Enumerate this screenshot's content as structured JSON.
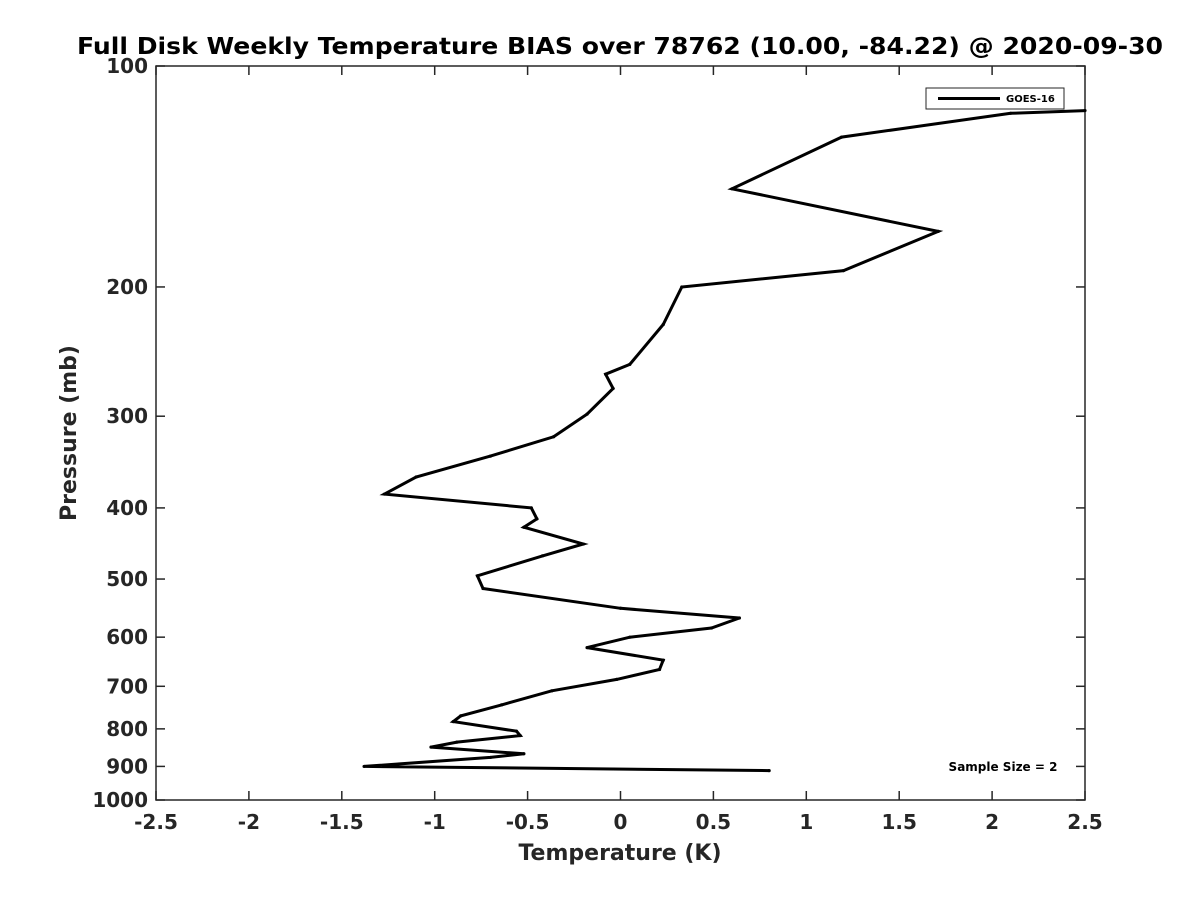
{
  "chart_data": {
    "type": "line",
    "title": "Full Disk Weekly Temperature BIAS over 78762 (10.00, -84.22) @ 2020-09-30",
    "xlabel": "Temperature (K)",
    "ylabel": "Pressure (mb)",
    "xlim": [
      -2.5,
      2.5
    ],
    "ylim": [
      100,
      1000
    ],
    "y_scale": "log",
    "y_reversed": true,
    "x_ticks": [
      "-2.5",
      "-2",
      "-1.5",
      "-1",
      "-0.5",
      "0",
      "0.5",
      "1",
      "1.5",
      "2",
      "2.5"
    ],
    "y_ticks": [
      "100",
      "200",
      "300",
      "400",
      "500",
      "600",
      "700",
      "800",
      "900",
      "1000"
    ],
    "grid": false,
    "legend_position": "top-right",
    "annotation": "Sample Size = 2",
    "series": [
      {
        "name": "GOES-16",
        "color": "#000000",
        "points": [
          {
            "p": 115,
            "t": 2.5
          },
          {
            "p": 116,
            "t": 2.1
          },
          {
            "p": 125,
            "t": 1.19
          },
          {
            "p": 147,
            "t": 0.6
          },
          {
            "p": 168,
            "t": 1.71
          },
          {
            "p": 190,
            "t": 1.2
          },
          {
            "p": 200,
            "t": 0.33
          },
          {
            "p": 225,
            "t": 0.23
          },
          {
            "p": 255,
            "t": 0.05
          },
          {
            "p": 263,
            "t": -0.08
          },
          {
            "p": 275,
            "t": -0.04
          },
          {
            "p": 298,
            "t": -0.18
          },
          {
            "p": 320,
            "t": -0.36
          },
          {
            "p": 340,
            "t": -0.7
          },
          {
            "p": 363,
            "t": -1.1
          },
          {
            "p": 383,
            "t": -1.27
          },
          {
            "p": 400,
            "t": -0.48
          },
          {
            "p": 414,
            "t": -0.45
          },
          {
            "p": 425,
            "t": -0.52
          },
          {
            "p": 448,
            "t": -0.2
          },
          {
            "p": 465,
            "t": -0.42
          },
          {
            "p": 495,
            "t": -0.77
          },
          {
            "p": 515,
            "t": -0.74
          },
          {
            "p": 548,
            "t": 0.0
          },
          {
            "p": 565,
            "t": 0.64
          },
          {
            "p": 583,
            "t": 0.49
          },
          {
            "p": 600,
            "t": 0.05
          },
          {
            "p": 620,
            "t": -0.18
          },
          {
            "p": 645,
            "t": 0.23
          },
          {
            "p": 664,
            "t": 0.21
          },
          {
            "p": 685,
            "t": -0.02
          },
          {
            "p": 710,
            "t": -0.37
          },
          {
            "p": 742,
            "t": -0.64
          },
          {
            "p": 768,
            "t": -0.86
          },
          {
            "p": 782,
            "t": -0.9
          },
          {
            "p": 806,
            "t": -0.56
          },
          {
            "p": 817,
            "t": -0.54
          },
          {
            "p": 834,
            "t": -0.88
          },
          {
            "p": 847,
            "t": -1.02
          },
          {
            "p": 865,
            "t": -0.52
          },
          {
            "p": 875,
            "t": -0.7
          },
          {
            "p": 900,
            "t": -1.38
          },
          {
            "p": 912,
            "t": 0.8
          }
        ]
      }
    ]
  }
}
